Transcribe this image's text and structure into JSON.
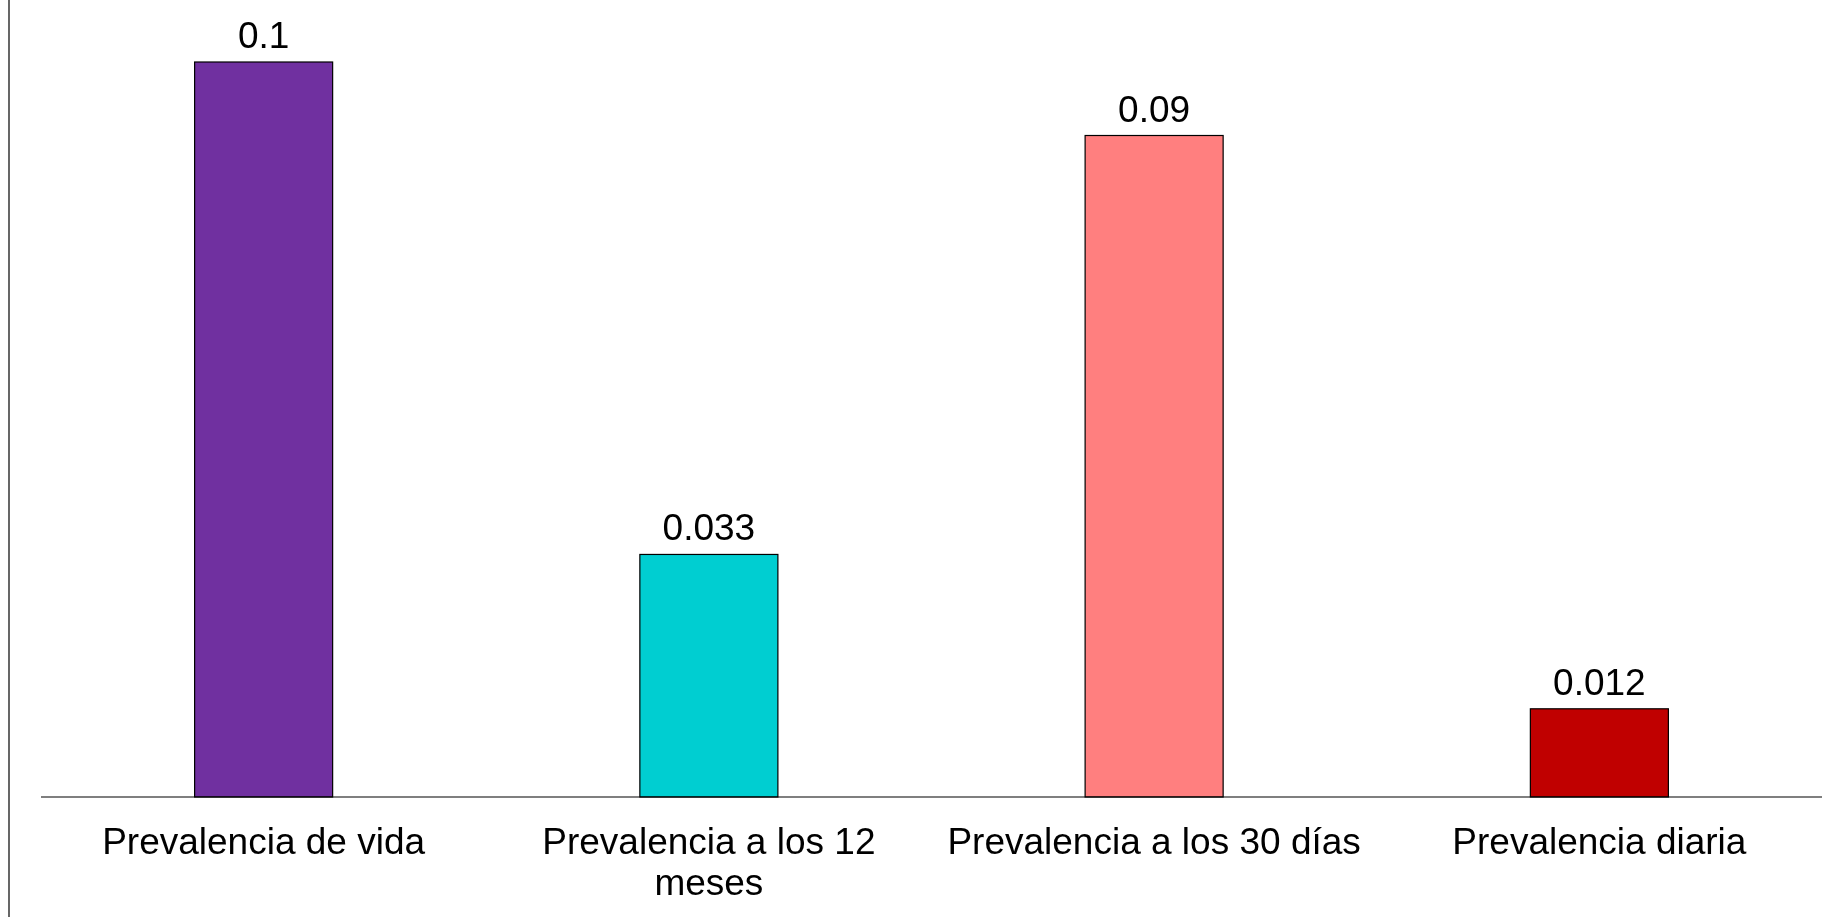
{
  "chart_data": {
    "type": "bar",
    "categories": [
      "Prevalencia de vida",
      "Prevalencia a los 12 meses",
      "Prevalencia a los 30 días",
      "Prevalencia diaria"
    ],
    "values": [
      0.1,
      0.033,
      0.09,
      0.012
    ],
    "colors": [
      "#7030a0",
      "#00ced1",
      "#ff7f7f",
      "#c00000"
    ],
    "data_labels": true
  }
}
